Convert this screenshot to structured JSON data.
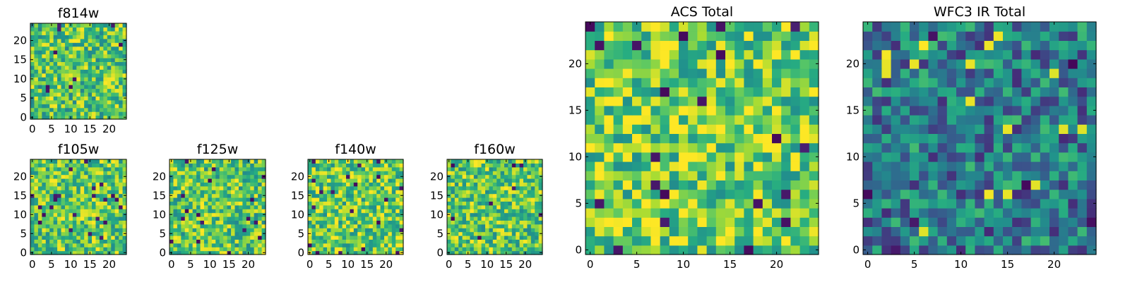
{
  "chart_data": [
    {
      "type": "heatmap",
      "id": "f814w",
      "title": "f814w",
      "grid": [
        25,
        25
      ],
      "colormap": "viridis",
      "value_range": [
        0,
        1
      ],
      "xlim": [
        -0.5,
        24.5
      ],
      "ylim": [
        -0.5,
        24.5
      ],
      "xticks": [
        0,
        5,
        10,
        15,
        20
      ],
      "yticks": [
        0,
        5,
        10,
        15,
        20
      ],
      "xtick_labels": [
        "0",
        "5",
        "10",
        "15",
        "20"
      ],
      "ytick_labels": [
        "0",
        "5",
        "10",
        "15",
        "20"
      ],
      "mean_level": 0.72,
      "seed": 11
    },
    {
      "type": "heatmap",
      "id": "f105w",
      "title": "f105w",
      "grid": [
        25,
        25
      ],
      "colormap": "viridis",
      "value_range": [
        0,
        1
      ],
      "xlim": [
        -0.5,
        24.5
      ],
      "ylim": [
        -0.5,
        24.5
      ],
      "xticks": [
        0,
        5,
        10,
        15,
        20
      ],
      "yticks": [
        0,
        5,
        10,
        15,
        20
      ],
      "xtick_labels": [
        "0",
        "5",
        "10",
        "15",
        "20"
      ],
      "ytick_labels": [
        "0",
        "5",
        "10",
        "15",
        "20"
      ],
      "mean_level": 0.74,
      "seed": 23
    },
    {
      "type": "heatmap",
      "id": "f125w",
      "title": "f125w",
      "grid": [
        25,
        25
      ],
      "colormap": "viridis",
      "value_range": [
        0,
        1
      ],
      "xlim": [
        -0.5,
        24.5
      ],
      "ylim": [
        -0.5,
        24.5
      ],
      "xticks": [
        0,
        5,
        10,
        15,
        20
      ],
      "yticks": [
        0,
        5,
        10,
        15,
        20
      ],
      "xtick_labels": [
        "0",
        "5",
        "10",
        "15",
        "20"
      ],
      "ytick_labels": [
        "0",
        "5",
        "10",
        "15",
        "20"
      ],
      "mean_level": 0.73,
      "seed": 37
    },
    {
      "type": "heatmap",
      "id": "f140w",
      "title": "f140w",
      "grid": [
        25,
        25
      ],
      "colormap": "viridis",
      "value_range": [
        0,
        1
      ],
      "xlim": [
        -0.5,
        24.5
      ],
      "ylim": [
        -0.5,
        24.5
      ],
      "xticks": [
        0,
        5,
        10,
        15,
        20
      ],
      "yticks": [
        0,
        5,
        10,
        15,
        20
      ],
      "xtick_labels": [
        "0",
        "5",
        "10",
        "15",
        "20"
      ],
      "ytick_labels": [
        "0",
        "5",
        "10",
        "15",
        "20"
      ],
      "mean_level": 0.75,
      "seed": 41
    },
    {
      "type": "heatmap",
      "id": "f160w",
      "title": "f160w",
      "grid": [
        25,
        25
      ],
      "colormap": "viridis",
      "value_range": [
        0,
        1
      ],
      "xlim": [
        -0.5,
        24.5
      ],
      "ylim": [
        -0.5,
        24.5
      ],
      "xticks": [
        0,
        5,
        10,
        15,
        20
      ],
      "yticks": [
        0,
        5,
        10,
        15,
        20
      ],
      "xtick_labels": [
        "0",
        "5",
        "10",
        "15",
        "20"
      ],
      "ytick_labels": [
        "0",
        "5",
        "10",
        "15",
        "20"
      ],
      "mean_level": 0.74,
      "seed": 53
    },
    {
      "type": "heatmap",
      "id": "acs-total",
      "title": "ACS Total",
      "grid": [
        25,
        25
      ],
      "colormap": "viridis",
      "value_range": [
        0,
        1
      ],
      "xlim": [
        -0.5,
        24.5
      ],
      "ylim": [
        -0.5,
        24.5
      ],
      "xticks": [
        0,
        5,
        10,
        15,
        20
      ],
      "yticks": [
        0,
        5,
        10,
        15,
        20
      ],
      "xtick_labels": [
        "0",
        "5",
        "10",
        "15",
        "20"
      ],
      "ytick_labels": [
        "0",
        "5",
        "10",
        "15",
        "20"
      ],
      "mean_level": 0.76,
      "seed": 67
    },
    {
      "type": "heatmap",
      "id": "wfc3-ir-total",
      "title": "WFC3 IR Total",
      "grid": [
        25,
        25
      ],
      "colormap": "viridis",
      "value_range": [
        0,
        1
      ],
      "xlim": [
        -0.5,
        24.5
      ],
      "ylim": [
        -0.5,
        24.5
      ],
      "xticks": [
        0,
        5,
        10,
        15,
        20
      ],
      "yticks": [
        0,
        5,
        10,
        15,
        20
      ],
      "xtick_labels": [
        "0",
        "5",
        "10",
        "15",
        "20"
      ],
      "ytick_labels": [
        "0",
        "5",
        "10",
        "15",
        "20"
      ],
      "mean_level": 0.42,
      "seed": 79
    }
  ]
}
